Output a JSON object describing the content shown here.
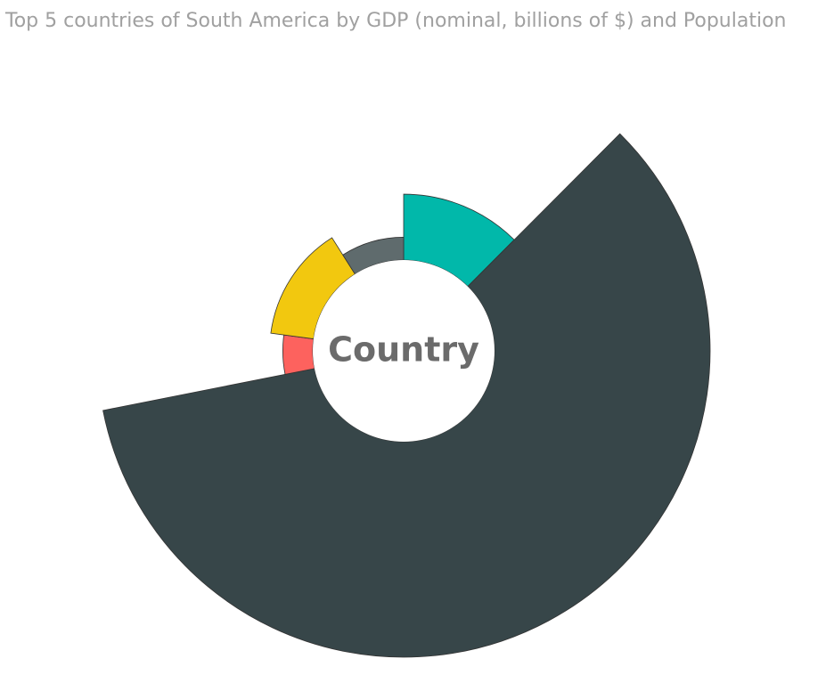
{
  "chart_data": {
    "type": "aster",
    "title": "Top 5 countries of South America by GDP (nominal, billions of $) and Population",
    "center_label": "Country",
    "values": [
      550,
      1800,
      250,
      360,
      190
    ],
    "weights": [
      43,
      205,
      18,
      48,
      31
    ],
    "rlim": [
      0,
      1800
    ],
    "colors": [
      "#01B8AA",
      "#374649",
      "#FD625E",
      "#F2C80F",
      "#5F6B6D"
    ]
  }
}
